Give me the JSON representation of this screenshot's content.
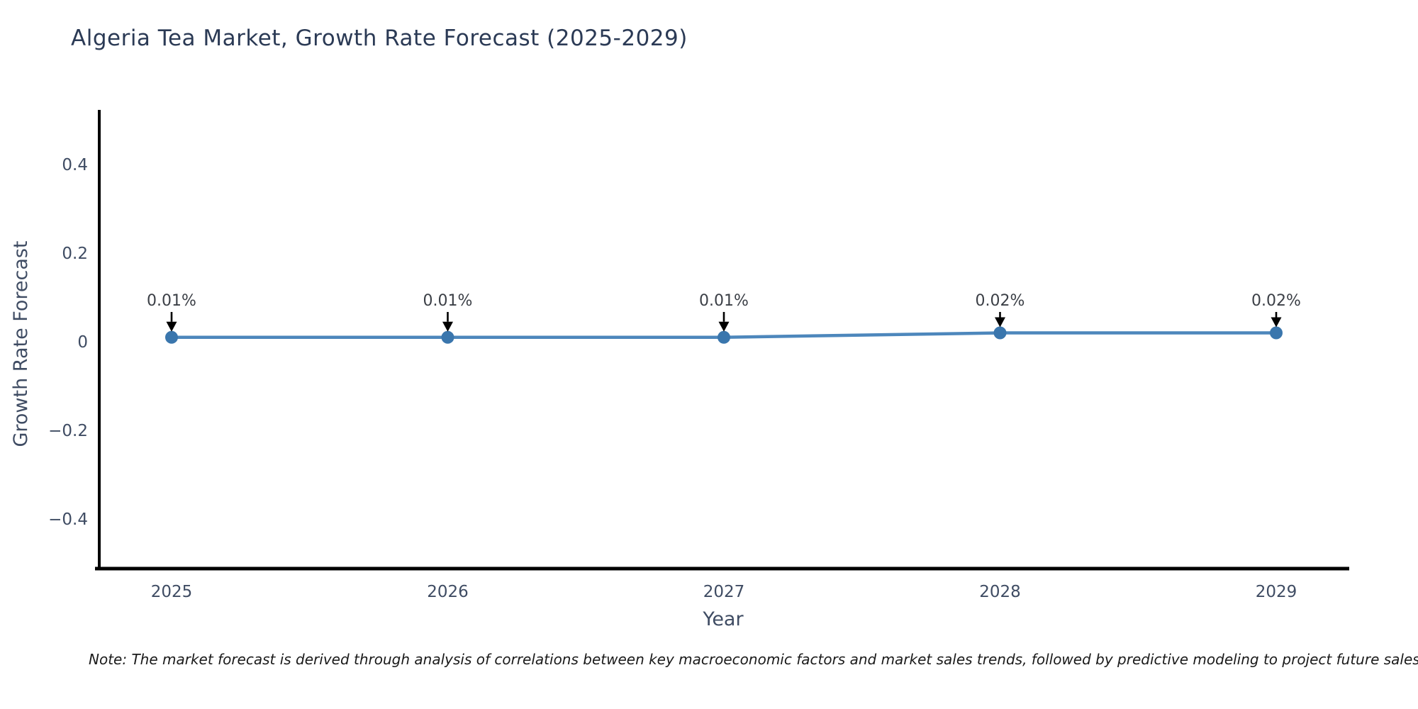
{
  "title": "Algeria Tea Market, Growth Rate Forecast (2025-2029)",
  "note": "Note: The market forecast is derived through analysis of correlations between key macroeconomic factors and market sales trends, followed by predictive modeling to project future sales",
  "chart_data": {
    "type": "line",
    "title": "Algeria Tea Market, Growth Rate Forecast (2025-2029)",
    "xlabel": "Year",
    "ylabel": "Growth Rate Forecast",
    "categories": [
      "2025",
      "2026",
      "2027",
      "2028",
      "2029"
    ],
    "series": [
      {
        "name": "Growth Rate Forecast",
        "values": [
          0.01,
          0.01,
          0.01,
          0.02,
          0.02
        ]
      }
    ],
    "point_labels": [
      "0.01%",
      "0.01%",
      "0.01%",
      "0.02%",
      "0.02%"
    ],
    "yticks": {
      "values": [
        0.4,
        0.2,
        0,
        -0.2,
        -0.4
      ],
      "labels": [
        "0.4",
        "0.2",
        "0",
        "−0.2",
        "−0.4"
      ]
    },
    "ylim": [
      -0.52,
      0.52
    ],
    "grid": false,
    "legend": "none",
    "colors": {
      "line": "#4d87bc",
      "marker": "#3a76ad",
      "axis": "#000000",
      "tick_text": "#3f4c63",
      "title_text": "#2b3a55",
      "annotation_text": "#3b3f46",
      "arrow": "#000000",
      "background": "#ffffff"
    }
  }
}
